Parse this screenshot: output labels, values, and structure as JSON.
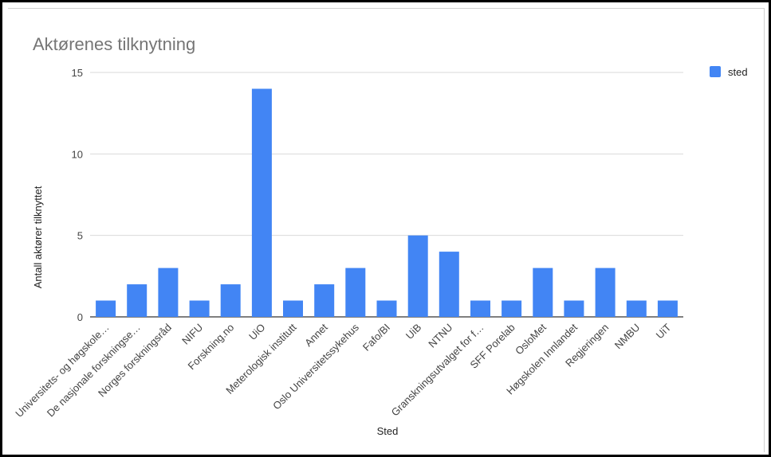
{
  "chart_data": {
    "type": "bar",
    "title": "Aktørenes tilknytning",
    "xlabel": "Sted",
    "ylabel": "Antall aktører tilknyttet",
    "ylim": [
      0,
      15
    ],
    "yticks": [
      0,
      5,
      10,
      15
    ],
    "grid": true,
    "legend_position": "top-right",
    "categories": [
      "Universitets- og høgskole…",
      "De nasjonale forskningse…",
      "Norges forskningsråd",
      "NIFU",
      "Forskning.no",
      "UiO",
      "Meterologisk institutt",
      "Annet",
      "Oslo Universitetssykehus",
      "Fafo/BI",
      "UiB",
      "NTNU",
      "Granskningsutvalget for f…",
      "SFF Porelab",
      "OsloMet",
      "Høgskolen Innlandet",
      "Regjeringen",
      "NMBU",
      "UiT"
    ],
    "series": [
      {
        "name": "sted",
        "color": "#4285f4",
        "values": [
          1,
          2,
          3,
          1,
          2,
          14,
          1,
          2,
          3,
          1,
          5,
          4,
          1,
          1,
          3,
          1,
          3,
          1,
          1
        ]
      }
    ]
  }
}
